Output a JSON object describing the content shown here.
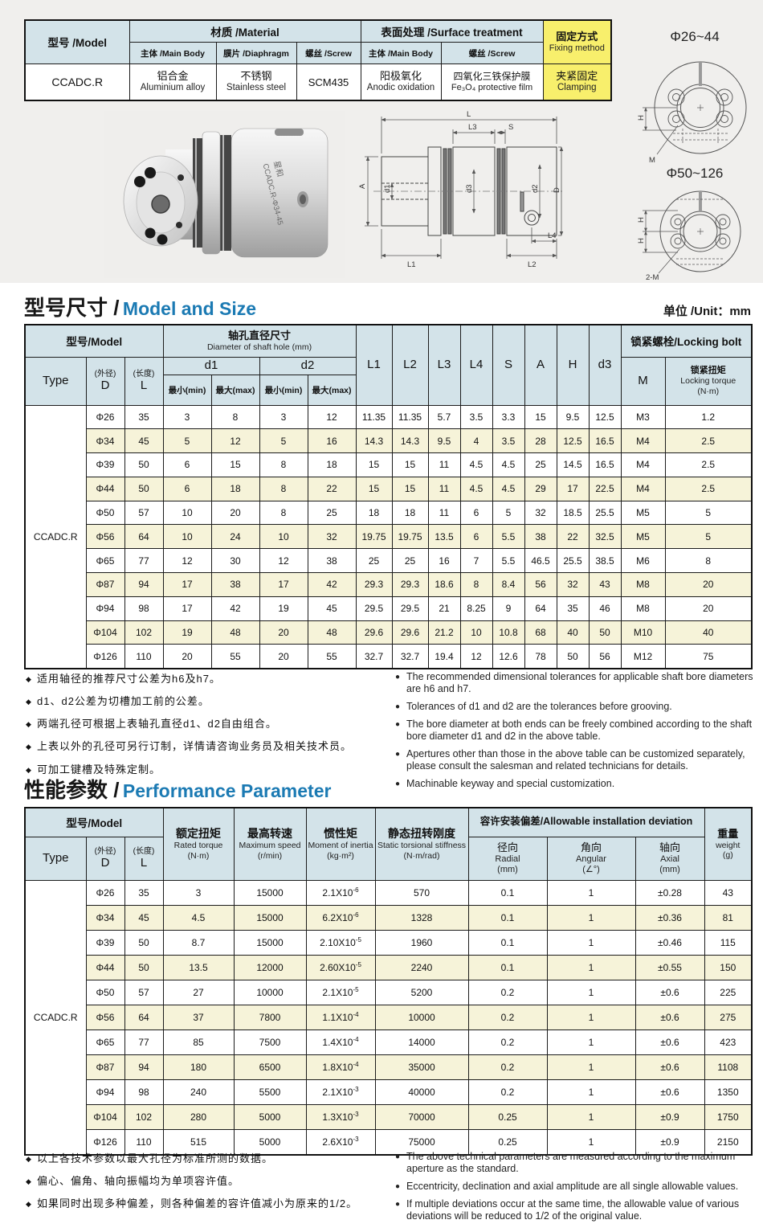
{
  "colors": {
    "accent_blue": "#1b7ab3",
    "table_header_bg": "#d3e3e9",
    "alt_row_bg": "#f6f3d9",
    "highlight_yellow": "#f8ef6c"
  },
  "info_table": {
    "model_header": "型号 /Model",
    "material_header": "材质 /Material",
    "surface_header": "表面处理 /Surface treatment",
    "fixing_header_zh": "固定方式",
    "fixing_header_en": "Fixing method",
    "sub_headers": [
      "主体 /Main Body",
      "膜片 /Diaphragm",
      "螺丝 /Screw",
      "主体 /Main Body",
      "螺丝 /Screw"
    ],
    "row": {
      "model": "CCADC.R",
      "main_body_zh": "铝合金",
      "main_body_en": "Aluminium alloy",
      "diaphragm_zh": "不锈钢",
      "diaphragm_en": "Stainless steel",
      "screw": "SCM435",
      "surface_main_zh": "阳极氧化",
      "surface_main_en": "Anodic oxidation",
      "surface_screw_zh": "四氧化三铁保护膜",
      "surface_screw_en": "Fe₃O₄ protective film",
      "fixing_zh": "夹紧固定",
      "fixing_en": "Clamping"
    }
  },
  "diagrams": {
    "photo_markings": {
      "brand": "星和",
      "model": "CCADC.R-Φ34-45"
    },
    "side_view_labels": [
      "L",
      "L3",
      "S",
      "A",
      "d1",
      "d3",
      "d2",
      "D",
      "L1",
      "L2",
      "L4"
    ],
    "end_view_small": {
      "title": "Φ26~44",
      "dim": "H",
      "bolt": "M"
    },
    "end_view_large": {
      "title": "Φ50~126",
      "dim1": "H",
      "dim2": "H",
      "bolt": "2-M"
    }
  },
  "size_section": {
    "title_zh": "型号尺寸 /",
    "title_en": "Model and Size",
    "unit": "单位 /Unit：mm"
  },
  "size_table": {
    "type_label": "CCADC.R",
    "h": {
      "model": "型号/Model",
      "shaft_zh": "轴孔直径尺寸",
      "shaft_en": "Diameter of shaft hole (mm)",
      "type": "Type",
      "od_s": "(外径)",
      "od": "D",
      "len_s": "(长度)",
      "len": "L",
      "d1": "d1",
      "d2": "d2",
      "min": "最小(min)",
      "max": "最大(max)",
      "dims": [
        "L1",
        "L2",
        "L3",
        "L4",
        "S",
        "A",
        "H",
        "d3"
      ],
      "lock": "锁紧螺栓/Locking bolt",
      "m": "M",
      "torque_zh": "锁紧扭矩",
      "torque_en": "Locking torque",
      "torque_unit": "(N·m)"
    },
    "rows": [
      [
        "Φ26",
        "35",
        "3",
        "8",
        "3",
        "12",
        "11.35",
        "11.35",
        "5.7",
        "3.5",
        "3.3",
        "15",
        "9.5",
        "12.5",
        "M3",
        "1.2"
      ],
      [
        "Φ34",
        "45",
        "5",
        "12",
        "5",
        "16",
        "14.3",
        "14.3",
        "9.5",
        "4",
        "3.5",
        "28",
        "12.5",
        "16.5",
        "M4",
        "2.5"
      ],
      [
        "Φ39",
        "50",
        "6",
        "15",
        "8",
        "18",
        "15",
        "15",
        "11",
        "4.5",
        "4.5",
        "25",
        "14.5",
        "16.5",
        "M4",
        "2.5"
      ],
      [
        "Φ44",
        "50",
        "6",
        "18",
        "8",
        "22",
        "15",
        "15",
        "11",
        "4.5",
        "4.5",
        "29",
        "17",
        "22.5",
        "M4",
        "2.5"
      ],
      [
        "Φ50",
        "57",
        "10",
        "20",
        "8",
        "25",
        "18",
        "18",
        "11",
        "6",
        "5",
        "32",
        "18.5",
        "25.5",
        "M5",
        "5"
      ],
      [
        "Φ56",
        "64",
        "10",
        "24",
        "10",
        "32",
        "19.75",
        "19.75",
        "13.5",
        "6",
        "5.5",
        "38",
        "22",
        "32.5",
        "M5",
        "5"
      ],
      [
        "Φ65",
        "77",
        "12",
        "30",
        "12",
        "38",
        "25",
        "25",
        "16",
        "7",
        "5.5",
        "46.5",
        "25.5",
        "38.5",
        "M6",
        "8"
      ],
      [
        "Φ87",
        "94",
        "17",
        "38",
        "17",
        "42",
        "29.3",
        "29.3",
        "18.6",
        "8",
        "8.4",
        "56",
        "32",
        "43",
        "M8",
        "20"
      ],
      [
        "Φ94",
        "98",
        "17",
        "42",
        "19",
        "45",
        "29.5",
        "29.5",
        "21",
        "8.25",
        "9",
        "64",
        "35",
        "46",
        "M8",
        "20"
      ],
      [
        "Φ104",
        "102",
        "19",
        "48",
        "20",
        "48",
        "29.6",
        "29.6",
        "21.2",
        "10",
        "10.8",
        "68",
        "40",
        "50",
        "M10",
        "40"
      ],
      [
        "Φ126",
        "110",
        "20",
        "55",
        "20",
        "55",
        "32.7",
        "32.7",
        "19.4",
        "12",
        "12.6",
        "78",
        "50",
        "56",
        "M12",
        "75"
      ]
    ]
  },
  "size_notes_zh": [
    "适用轴径的推荐尺寸公差为h6及h7。",
    "d1、d2公差为切槽加工前的公差。",
    "两端孔径可根据上表轴孔直径d1、d2自由组合。",
    "上表以外的孔径可另行订制，详情请咨询业务员及相关技术员。",
    "可加工键槽及特殊定制。"
  ],
  "size_notes_en": [
    "The recommended dimensional tolerances for applicable shaft bore diameters are h6 and h7.",
    "Tolerances of d1 and d2 are the tolerances before grooving.",
    "The bore diameter at both ends can be freely combined according to the shaft bore diameter d1 and d2 in the above table.",
    "Apertures other than those in the above table can be customized separately, please consult the salesman and related technicians for details.",
    "Machinable keyway and special customization."
  ],
  "perf_section": {
    "title_zh": "性能参数 /",
    "title_en": "Performance Parameter"
  },
  "perf_table": {
    "type_label": "CCADC.R",
    "h": {
      "model": "型号/Model",
      "type": "Type",
      "od_s": "(外径)",
      "od": "D",
      "len_s": "(长度)",
      "len": "L",
      "rated_zh": "额定扭矩",
      "rated_en": "Rated torque",
      "rated_unit": "(N·m)",
      "speed_zh": "最高转速",
      "speed_en": "Maximum speed",
      "speed_unit": "(r/min)",
      "inertia_zh": "惯性矩",
      "inertia_en": "Moment of inertia",
      "inertia_unit": "(kg·m²)",
      "stiff_zh": "静态扭转刚度",
      "stiff_en": "Static torsional stiffness",
      "stiff_unit": "(N·m/rad)",
      "dev": "容许安装偏差/Allowable installation deviation",
      "radial_zh": "径向",
      "radial_en": "Radial",
      "radial_unit": "(mm)",
      "angular_zh": "角向",
      "angular_en": "Angular",
      "angular_unit": "(∠°)",
      "axial_zh": "轴向",
      "axial_en": "Axial",
      "axial_unit": "(mm)",
      "weight_zh": "重量",
      "weight_en": "weight",
      "weight_unit": "(g)"
    },
    "rows": [
      [
        "Φ26",
        "35",
        "3",
        "15000",
        "2.1X10^-6",
        "570",
        "0.1",
        "1",
        "±0.28",
        "43"
      ],
      [
        "Φ34",
        "45",
        "4.5",
        "15000",
        "6.2X10^-6",
        "1328",
        "0.1",
        "1",
        "±0.36",
        "81"
      ],
      [
        "Φ39",
        "50",
        "8.7",
        "15000",
        "2.10X10^-5",
        "1960",
        "0.1",
        "1",
        "±0.46",
        "115"
      ],
      [
        "Φ44",
        "50",
        "13.5",
        "12000",
        "2.60X10^-5",
        "2240",
        "0.1",
        "1",
        "±0.55",
        "150"
      ],
      [
        "Φ50",
        "57",
        "27",
        "10000",
        "2.1X10^-5",
        "5200",
        "0.2",
        "1",
        "±0.6",
        "225"
      ],
      [
        "Φ56",
        "64",
        "37",
        "7800",
        "1.1X10^-4",
        "10000",
        "0.2",
        "1",
        "±0.6",
        "275"
      ],
      [
        "Φ65",
        "77",
        "85",
        "7500",
        "1.4X10^-4",
        "14000",
        "0.2",
        "1",
        "±0.6",
        "423"
      ],
      [
        "Φ87",
        "94",
        "180",
        "6500",
        "1.8X10^-4",
        "35000",
        "0.2",
        "1",
        "±0.6",
        "1108"
      ],
      [
        "Φ94",
        "98",
        "240",
        "5500",
        "2.1X10^-3",
        "40000",
        "0.2",
        "1",
        "±0.6",
        "1350"
      ],
      [
        "Φ104",
        "102",
        "280",
        "5000",
        "1.3X10^-3",
        "70000",
        "0.25",
        "1",
        "±0.9",
        "1750"
      ],
      [
        "Φ126",
        "110",
        "515",
        "5000",
        "2.6X10^-3",
        "75000",
        "0.25",
        "1",
        "±0.9",
        "2150"
      ]
    ]
  },
  "perf_notes_zh": [
    "以上各技术参数以最大孔径为标准所测的数据。",
    "偏心、偏角、轴向振幅均为单项容许值。",
    "如果同时出现多种偏差，则各种偏差的容许值减小为原来的1/2。"
  ],
  "perf_notes_en": [
    "The above technical parameters are measured according to the maximum aperture as the standard.",
    "Eccentricity, declination and axial amplitude are all single allowable values.",
    "If multiple deviations occur at the same time, the allowable value of various deviations will be reduced to 1/2 of the original value."
  ],
  "bullets": {
    "zh": "◆",
    "en": "●"
  }
}
